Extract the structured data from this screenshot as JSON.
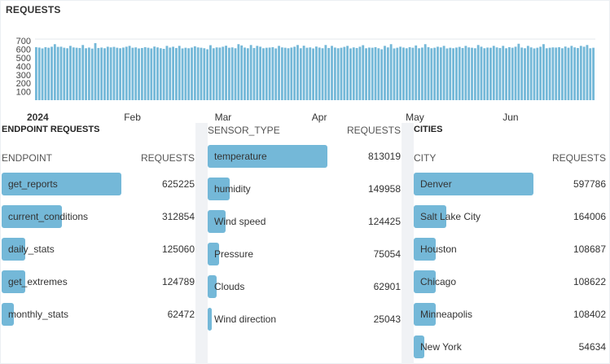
{
  "requests_chart": {
    "title": "REQUESTS",
    "bar_color": "#74b8d8",
    "y_ticks": [
      "700",
      "600",
      "500",
      "400",
      "300",
      "200",
      "100"
    ],
    "x_labels": [
      {
        "label": "2024",
        "bold": true
      },
      {
        "label": "Feb",
        "bold": false
      },
      {
        "label": "Mar",
        "bold": false
      },
      {
        "label": "Apr",
        "bold": false
      },
      {
        "label": "May",
        "bold": false
      },
      {
        "label": "Jun",
        "bold": false
      }
    ]
  },
  "chart_data": {
    "type": "bar",
    "title": "REQUESTS",
    "xlabel": "",
    "ylabel": "",
    "ylim": [
      0,
      720
    ],
    "grid": true,
    "x_start": "2024-01-01",
    "x_end": "2024-06-28",
    "values": [
      625,
      620,
      610,
      625,
      618,
      630,
      660,
      628,
      630,
      618,
      612,
      640,
      622,
      618,
      615,
      650,
      612,
      620,
      608,
      672,
      615,
      620,
      612,
      630,
      622,
      628,
      618,
      612,
      620,
      630,
      640,
      618,
      622,
      610,
      615,
      625,
      618,
      610,
      632,
      622,
      612,
      605,
      640,
      620,
      630,
      615,
      640,
      610,
      618,
      612,
      620,
      635,
      622,
      618,
      612,
      600,
      648,
      612,
      622,
      620,
      630,
      642,
      618,
      622,
      612,
      660,
      645,
      620,
      612,
      650,
      615,
      640,
      630,
      612,
      618,
      620,
      625,
      610,
      640,
      622,
      618,
      612,
      620,
      630,
      650,
      612,
      642,
      618,
      622,
      610,
      632,
      620,
      612,
      650,
      615,
      640,
      620,
      612,
      618,
      628,
      640,
      610,
      622,
      615,
      630,
      648,
      612,
      620,
      618,
      625,
      612,
      600,
      640,
      622,
      660,
      610,
      618,
      630,
      620,
      612,
      625,
      618,
      645,
      612,
      620,
      660,
      625,
      612,
      618,
      630,
      622,
      640,
      610,
      618,
      612,
      620,
      628,
      615,
      640,
      622,
      618,
      612,
      650,
      630,
      612,
      620,
      618,
      640,
      622,
      615,
      640,
      612,
      625,
      618,
      630,
      665,
      620,
      612,
      640,
      622,
      610,
      618,
      630,
      660,
      612,
      618,
      622,
      620,
      625,
      612,
      632,
      618,
      640,
      622,
      615,
      640,
      630,
      650,
      612,
      618
    ]
  },
  "endpoint_panel": {
    "title": "ENDPOINT REQUESTS",
    "col_label": "ENDPOINT",
    "col_value": "REQUESTS",
    "rows": [
      {
        "label": "get_reports",
        "value": "625225",
        "fraction": 1.0
      },
      {
        "label": "current_conditions",
        "value": "312854",
        "fraction": 0.5
      },
      {
        "label": "daily_stats",
        "value": "125060",
        "fraction": 0.2
      },
      {
        "label": "get_extremes",
        "value": "124789",
        "fraction": 0.2
      },
      {
        "label": "monthly_stats",
        "value": "62472",
        "fraction": 0.1
      }
    ]
  },
  "sensor_panel": {
    "col_label": "SENSOR_TYPE",
    "col_value": "REQUESTS",
    "rows": [
      {
        "label": "temperature",
        "value": "813019",
        "fraction": 1.0
      },
      {
        "label": "humidity",
        "value": "149958",
        "fraction": 0.184
      },
      {
        "label": "Wind speed",
        "value": "124425",
        "fraction": 0.153
      },
      {
        "label": "Pressure",
        "value": "75054",
        "fraction": 0.092
      },
      {
        "label": "Clouds",
        "value": "62901",
        "fraction": 0.077
      },
      {
        "label": "Wind direction",
        "value": "25043",
        "fraction": 0.031
      }
    ]
  },
  "cities_panel": {
    "title": "CITIES",
    "col_label": "CITY",
    "col_value": "REQUESTS",
    "rows": [
      {
        "label": "Denver",
        "value": "597786",
        "fraction": 1.0
      },
      {
        "label": "Salt Lake City",
        "value": "164006",
        "fraction": 0.274
      },
      {
        "label": "Houston",
        "value": "108687",
        "fraction": 0.182
      },
      {
        "label": "Chicago",
        "value": "108622",
        "fraction": 0.182
      },
      {
        "label": "Minneapolis",
        "value": "108402",
        "fraction": 0.181
      },
      {
        "label": "New York",
        "value": "54634",
        "fraction": 0.091
      }
    ]
  }
}
